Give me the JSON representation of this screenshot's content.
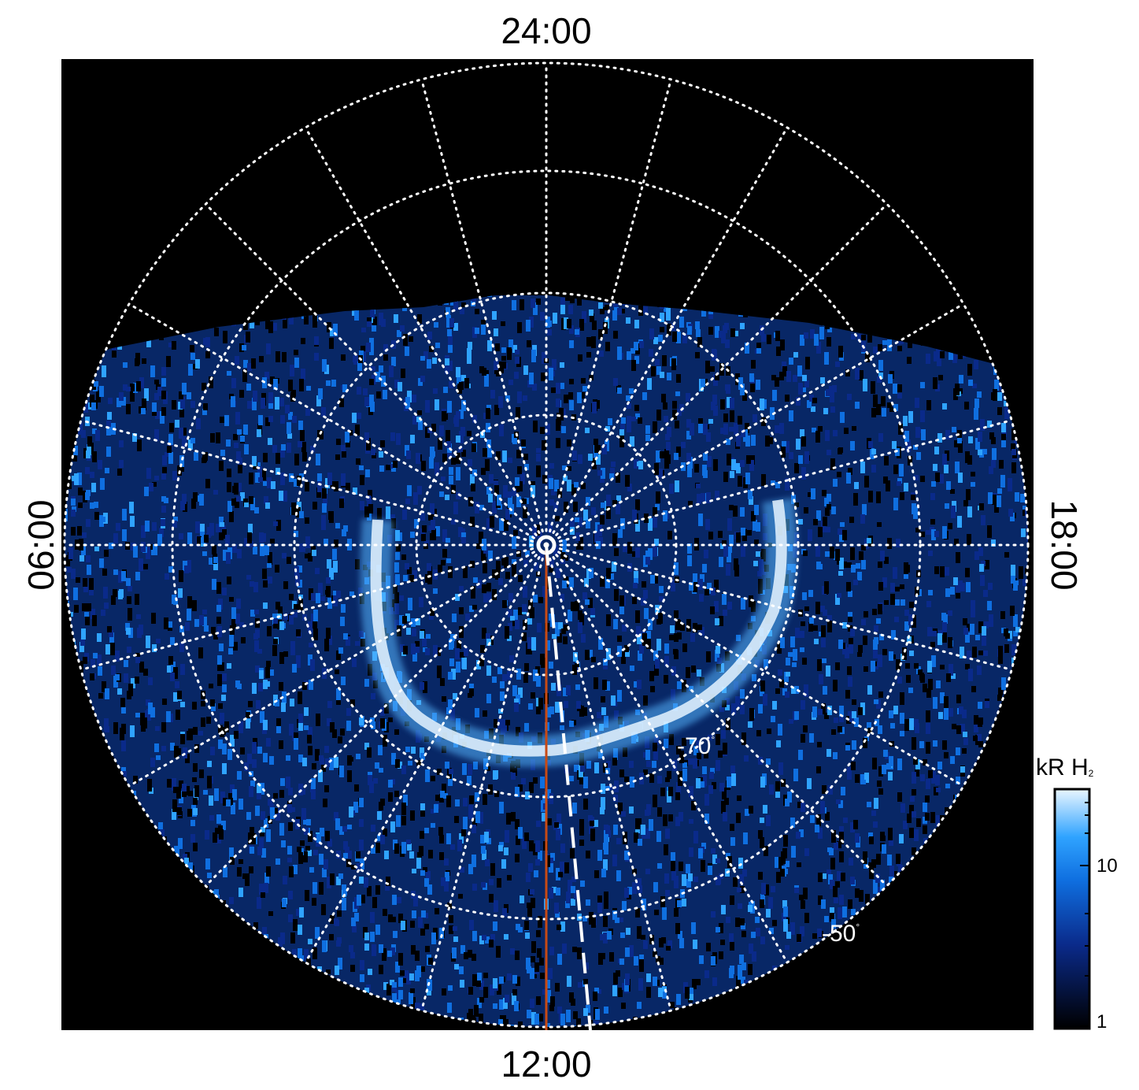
{
  "local_time_labels": {
    "top": "24:00",
    "bottom": "12:00",
    "left": "06:00",
    "right": "18:00"
  },
  "latitude_labels": [
    {
      "value": "-70",
      "unit": "°"
    },
    {
      "value": "-50",
      "unit": "°"
    }
  ],
  "colorbar": {
    "title": "kR H",
    "title_subscript": "2",
    "tick_labels": [
      "10",
      "1"
    ],
    "colors": [
      "#000000",
      "#0a2a8a",
      "#0f6fe0",
      "#2fa3ff",
      "#eaf6ff"
    ]
  },
  "colors": {
    "background": "#000000",
    "grid": "#ffffff",
    "meridian": "#c84a14",
    "dashed_line": "#ffffff"
  }
}
